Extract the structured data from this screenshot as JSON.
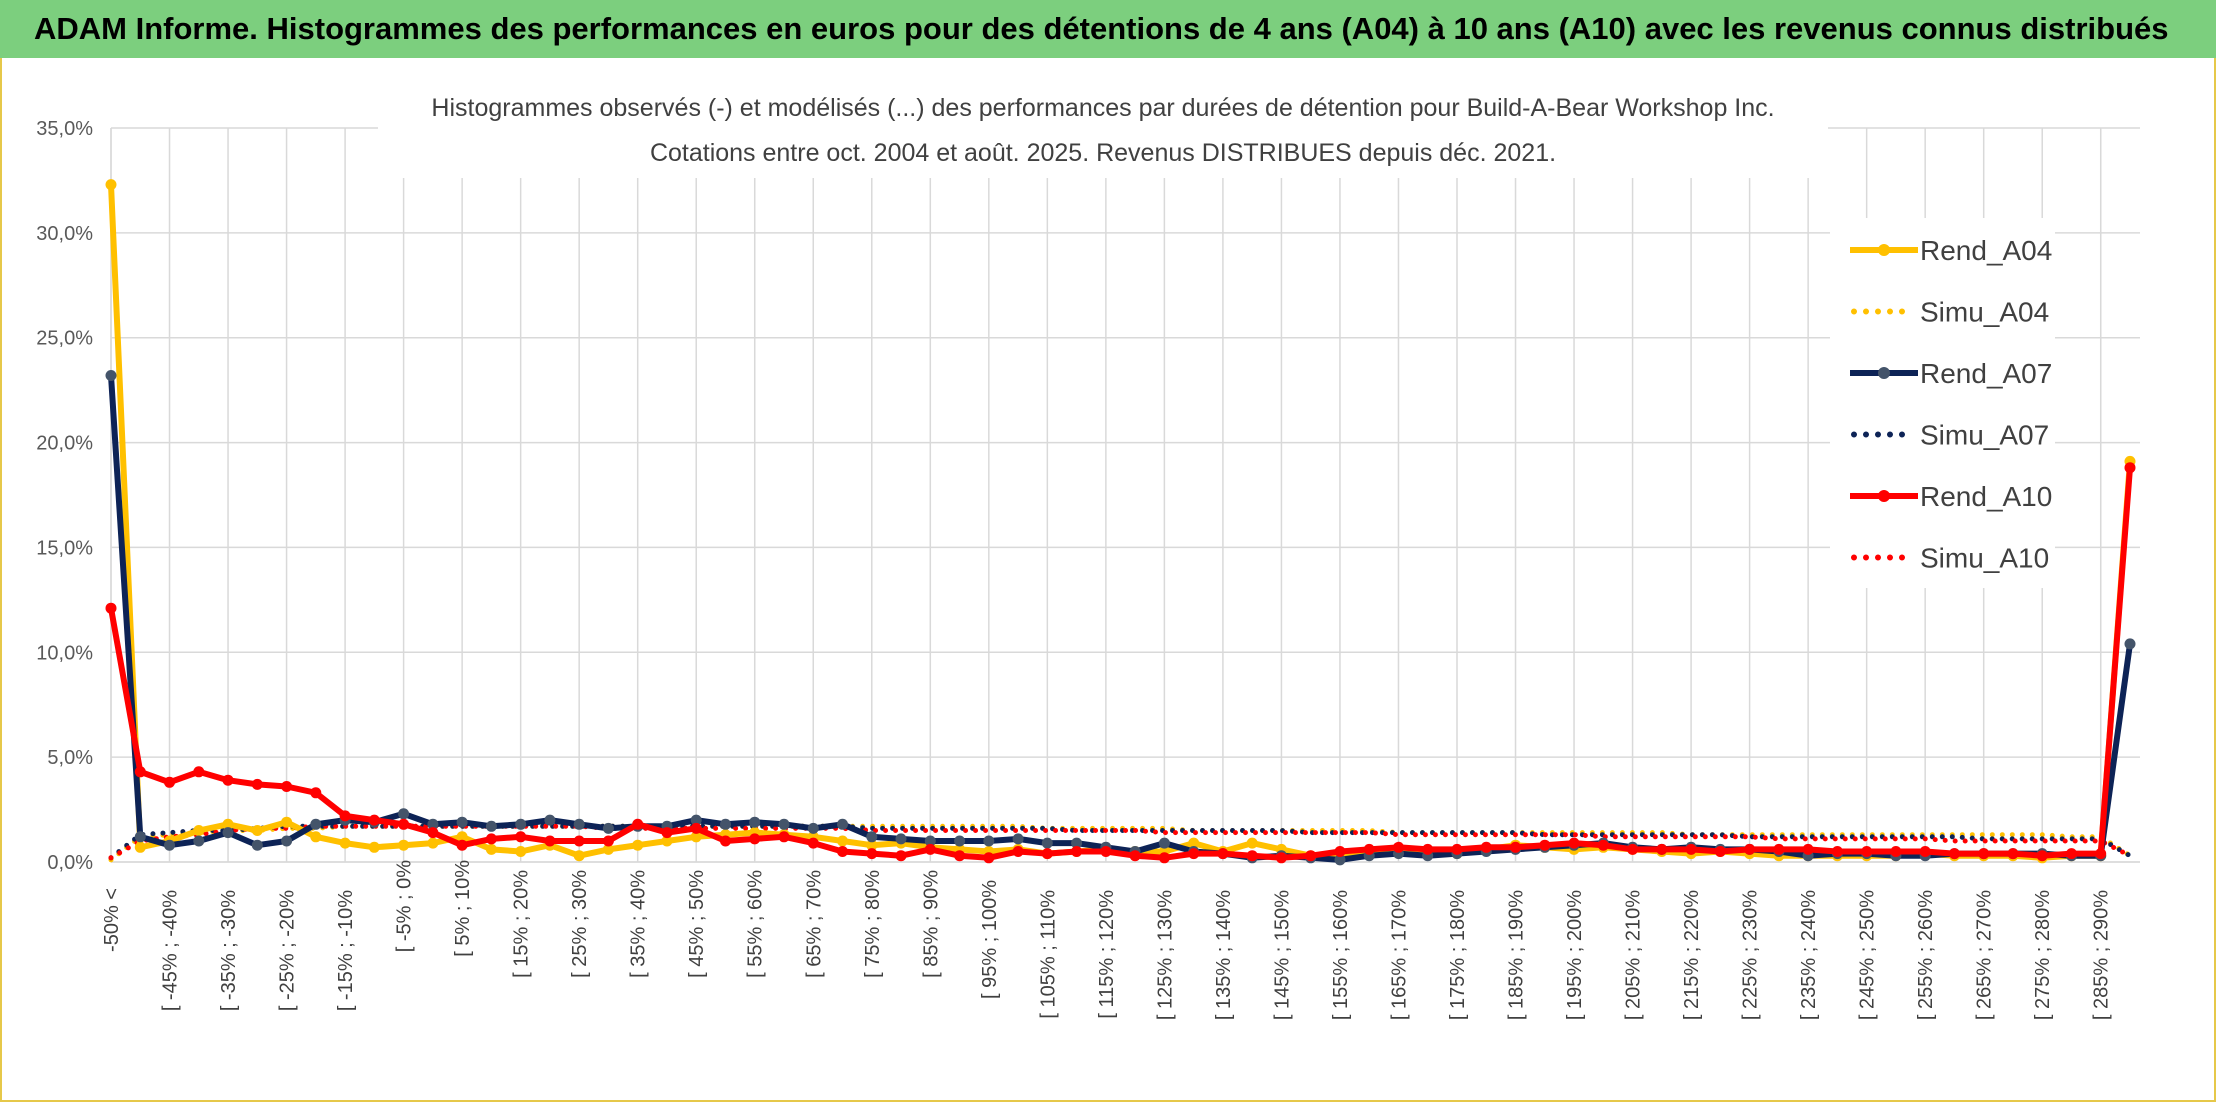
{
  "header": {
    "title": "ADAM Informe. Histogrammes des performances en euros pour des détentions de 4 ans (A04) à 10 ans (A10) avec les revenus connus distribués"
  },
  "chart_data": {
    "type": "line",
    "title": "Histogrammes observés (-) et modélisés (...) des performances par durées de détention pour Build-A-Bear Workshop Inc.",
    "subtitle": "Cotations entre oct. 2004 et août. 2025. Revenus DISTRIBUES depuis déc. 2021.",
    "xlabel": "",
    "ylabel": "",
    "ylim": [
      0,
      35
    ],
    "yticks": [
      "0,0%",
      "5,0%",
      "10,0%",
      "15,0%",
      "20,0%",
      "25,0%",
      "30,0%",
      "35,0%"
    ],
    "grid": true,
    "legend_position": "right",
    "x_tick_labels": [
      "-50% <",
      "[ -45% ; -40%",
      "[ -35% ; -30%",
      "[ -25% ; -20%",
      "[ -15% ; -10%",
      "[ -5% ; 0%",
      "[ 5% ; 10%",
      "[ 15% ; 20%",
      "[ 25% ; 30%",
      "[ 35% ; 40%",
      "[ 45% ; 50%",
      "[ 55% ; 60%",
      "[ 65% ; 70%",
      "[ 75% ; 80%",
      "[ 85% ; 90%",
      "[ 95% ; 100%",
      "[ 105% ; 110%",
      "[ 115% ; 120%",
      "[ 125% ; 130%",
      "[ 135% ; 140%",
      "[ 145% ; 150%",
      "[ 155% ; 160%",
      "[ 165% ; 170%",
      "[ 175% ; 180%",
      "[ 185% ; 190%",
      "[ 195% ; 200%",
      "[ 205% ; 210%",
      "[ 215% ; 220%",
      "[ 225% ; 230%",
      "[ 235% ; 240%",
      "[ 245% ; 250%",
      "[ 255% ; 260%",
      "[ 265% ; 270%",
      "[ 275% ; 280%",
      "[ 285% ; 290%"
    ],
    "series": [
      {
        "name": "Rend_A04",
        "style": "solid",
        "marker": true,
        "color": "#ffc000",
        "values": [
          32.3,
          0.7,
          1.0,
          1.5,
          1.8,
          1.5,
          1.9,
          1.2,
          0.9,
          0.7,
          0.8,
          0.9,
          1.2,
          0.6,
          0.5,
          0.8,
          0.3,
          0.6,
          0.8,
          1.0,
          1.2,
          1.3,
          1.4,
          1.3,
          1.2,
          1.0,
          0.8,
          0.9,
          0.7,
          0.6,
          0.5,
          0.6,
          0.4,
          0.5,
          0.6,
          0.5,
          0.5,
          0.9,
          0.5,
          0.9,
          0.6,
          0.3,
          0.4,
          0.4,
          0.5,
          0.5,
          0.4,
          0.6,
          0.8,
          0.7,
          0.6,
          0.7,
          0.6,
          0.5,
          0.4,
          0.5,
          0.4,
          0.3,
          0.3,
          0.3,
          0.3,
          0.3,
          0.4,
          0.3,
          0.3,
          0.3,
          0.2,
          0.3,
          0.3,
          19.1
        ]
      },
      {
        "name": "Simu_A04",
        "style": "dotted",
        "marker": false,
        "color": "#ffc000",
        "values": [
          0.1,
          1.2,
          1.3,
          1.4,
          1.5,
          1.5,
          1.6,
          1.6,
          1.7,
          1.7,
          1.7,
          1.7,
          1.7,
          1.7,
          1.7,
          1.7,
          1.7,
          1.7,
          1.7,
          1.7,
          1.7,
          1.7,
          1.7,
          1.7,
          1.7,
          1.7,
          1.7,
          1.7,
          1.7,
          1.7,
          1.7,
          1.7,
          1.6,
          1.6,
          1.6,
          1.6,
          1.6,
          1.5,
          1.5,
          1.5,
          1.5,
          1.5,
          1.5,
          1.5,
          1.4,
          1.4,
          1.4,
          1.4,
          1.4,
          1.4,
          1.4,
          1.4,
          1.4,
          1.4,
          1.3,
          1.3,
          1.3,
          1.3,
          1.3,
          1.3,
          1.3,
          1.3,
          1.3,
          1.3,
          1.3,
          1.3,
          1.3,
          1.2,
          1.2,
          0.3
        ]
      },
      {
        "name": "Rend_A07",
        "style": "solid",
        "marker": true,
        "color": "#0d2356",
        "values": [
          23.2,
          1.2,
          0.8,
          1.0,
          1.4,
          0.8,
          1.0,
          1.8,
          2.0,
          1.9,
          2.3,
          1.8,
          1.9,
          1.7,
          1.8,
          2.0,
          1.8,
          1.6,
          1.7,
          1.7,
          2.0,
          1.8,
          1.9,
          1.8,
          1.6,
          1.8,
          1.2,
          1.1,
          1.0,
          1.0,
          1.0,
          1.1,
          0.9,
          0.9,
          0.7,
          0.5,
          0.9,
          0.5,
          0.4,
          0.2,
          0.3,
          0.2,
          0.1,
          0.3,
          0.4,
          0.3,
          0.4,
          0.5,
          0.6,
          0.7,
          0.8,
          0.9,
          0.7,
          0.6,
          0.7,
          0.6,
          0.6,
          0.5,
          0.3,
          0.4,
          0.4,
          0.3,
          0.3,
          0.4,
          0.4,
          0.4,
          0.4,
          0.3,
          0.3,
          10.4
        ]
      },
      {
        "name": "Simu_A07",
        "style": "dotted",
        "marker": false,
        "color": "#0d2356",
        "values": [
          0.2,
          1.3,
          1.4,
          1.5,
          1.5,
          1.6,
          1.7,
          1.7,
          1.7,
          1.7,
          1.7,
          1.7,
          1.7,
          1.7,
          1.7,
          1.7,
          1.7,
          1.7,
          1.7,
          1.7,
          1.7,
          1.7,
          1.7,
          1.7,
          1.7,
          1.7,
          1.6,
          1.6,
          1.6,
          1.6,
          1.6,
          1.6,
          1.6,
          1.5,
          1.5,
          1.5,
          1.5,
          1.5,
          1.5,
          1.5,
          1.5,
          1.4,
          1.4,
          1.4,
          1.4,
          1.4,
          1.4,
          1.4,
          1.4,
          1.3,
          1.3,
          1.3,
          1.3,
          1.3,
          1.3,
          1.3,
          1.2,
          1.2,
          1.2,
          1.2,
          1.2,
          1.2,
          1.2,
          1.2,
          1.1,
          1.1,
          1.1,
          1.1,
          1.1,
          0.3
        ]
      },
      {
        "name": "Rend_A10",
        "style": "solid",
        "marker": true,
        "color": "#ff0000",
        "values": [
          12.1,
          4.3,
          3.8,
          4.3,
          3.9,
          3.7,
          3.6,
          3.3,
          2.2,
          2.0,
          1.8,
          1.4,
          0.8,
          1.1,
          1.2,
          1.0,
          1.0,
          1.0,
          1.8,
          1.4,
          1.6,
          1.0,
          1.1,
          1.2,
          0.9,
          0.5,
          0.4,
          0.3,
          0.6,
          0.3,
          0.2,
          0.5,
          0.4,
          0.5,
          0.5,
          0.3,
          0.2,
          0.4,
          0.4,
          0.3,
          0.2,
          0.3,
          0.5,
          0.6,
          0.7,
          0.6,
          0.6,
          0.7,
          0.7,
          0.8,
          0.9,
          0.8,
          0.6,
          0.6,
          0.6,
          0.5,
          0.6,
          0.6,
          0.6,
          0.5,
          0.5,
          0.5,
          0.5,
          0.4,
          0.4,
          0.4,
          0.3,
          0.4,
          0.4,
          18.8
        ]
      },
      {
        "name": "Simu_A10",
        "style": "dotted",
        "marker": false,
        "color": "#ff0000",
        "values": [
          0.2,
          1.0,
          1.2,
          1.3,
          1.5,
          1.6,
          1.6,
          1.7,
          1.7,
          1.7,
          1.7,
          1.7,
          1.7,
          1.7,
          1.7,
          1.7,
          1.7,
          1.6,
          1.6,
          1.6,
          1.6,
          1.6,
          1.6,
          1.6,
          1.6,
          1.6,
          1.5,
          1.5,
          1.5,
          1.5,
          1.5,
          1.5,
          1.5,
          1.5,
          1.5,
          1.5,
          1.4,
          1.4,
          1.4,
          1.4,
          1.4,
          1.4,
          1.4,
          1.4,
          1.3,
          1.3,
          1.3,
          1.3,
          1.3,
          1.3,
          1.3,
          1.2,
          1.2,
          1.2,
          1.2,
          1.2,
          1.2,
          1.1,
          1.1,
          1.1,
          1.1,
          1.1,
          1.1,
          1.0,
          1.0,
          1.0,
          1.0,
          1.0,
          1.0,
          0.3
        ]
      }
    ]
  }
}
